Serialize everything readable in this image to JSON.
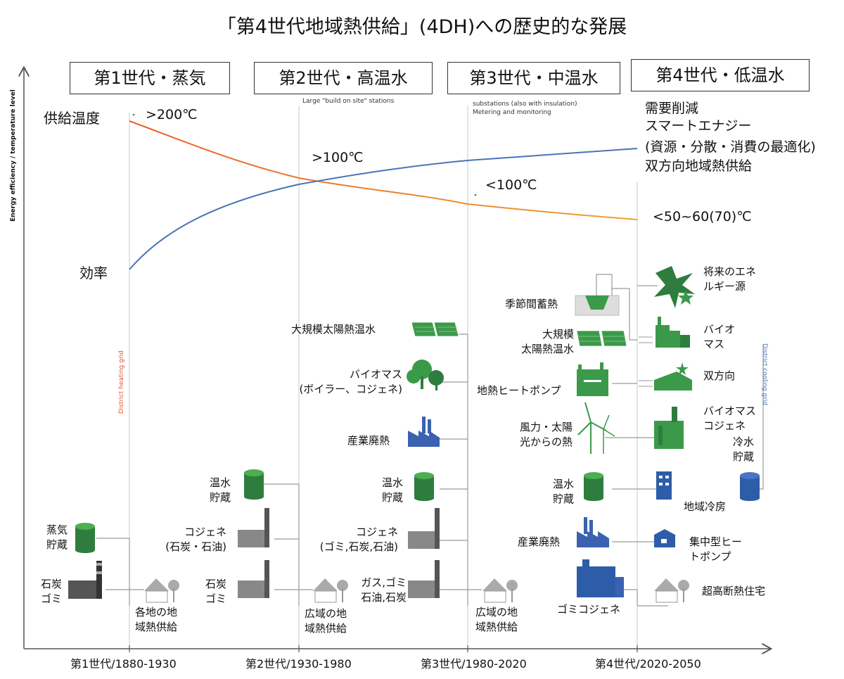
{
  "title": "「第4世代地域熱供給」(4DH)への歴史的な発展",
  "generations": [
    {
      "box": "第1世代・蒸気",
      "axis": "第1世代/1880-1930"
    },
    {
      "box": "第2世代・高温水",
      "axis": "第2世代/1930-1980"
    },
    {
      "box": "第3世代・中温水",
      "axis": "第3世代/1980-2020"
    },
    {
      "box": "第4世代・低温水",
      "axis": "第4世代/2020-2050"
    }
  ],
  "y_axis_label": "Energy efficiency / temperature level",
  "grid_labels": {
    "heating": "District heating grid",
    "cooling": "District cooling grid"
  },
  "notes": {
    "gen2": "Large \"build on site\" stations",
    "gen3_line1": "substations (also with insulation)",
    "gen3_line2": "Metering and monitoring"
  },
  "curves": {
    "supply_temp_label": "供給温度",
    "efficiency_label": "効率",
    "temps": [
      ">200℃",
      ">100℃",
      "<100℃",
      "<50~60(70)℃"
    ],
    "colors": {
      "temperature": "#E8742A",
      "efficiency": "#4A74B8"
    }
  },
  "gen4_features": [
    "需要削減",
    "スマートエナジー",
    "(資源・分散・消費の最適化)",
    "双方向地域熱供給"
  ],
  "gen1": {
    "steam_storage": [
      "蒸気",
      "貯蔵"
    ],
    "coal_waste": [
      "石炭",
      "ゴミ"
    ],
    "output": [
      "各地の地",
      "域熱供給"
    ]
  },
  "gen2": {
    "hot_water_storage": [
      "温水",
      "貯蔵"
    ],
    "chp": [
      "コジェネ",
      "(石炭・石油)"
    ],
    "coal_waste": [
      "石炭",
      "ゴミ"
    ],
    "output": [
      "広域の地",
      "域熱供給"
    ]
  },
  "gen3": {
    "solar": "大規模太陽熱温水",
    "biomass": [
      "バイオマス",
      "(ボイラー、コジェネ)"
    ],
    "industrial": "産業廃熱",
    "hot_water_storage": [
      "温水",
      "貯蔵"
    ],
    "chp": [
      "コジェネ",
      "(ゴミ,石炭,石油)"
    ],
    "fuels": [
      "ガス,ゴミ",
      "石油,石炭"
    ],
    "output": [
      "広域の地",
      "域熱供給"
    ]
  },
  "gen4_left": {
    "seasonal": "季節間蓄熱",
    "solar": [
      "大規模",
      "太陽熱温水"
    ],
    "geothermal": "地熱ヒートポンプ",
    "wind_solar": [
      "風力・太陽",
      "光からの熱"
    ],
    "hot_water_storage": [
      "温水",
      "貯蔵"
    ],
    "industrial": "産業廃熱",
    "waste_chp": "ゴミコジェネ"
  },
  "gen4_right": {
    "future": [
      "将来のエネ",
      "ルギー源"
    ],
    "biomass": [
      "バイオ",
      "マス"
    ],
    "bidirectional": "双方向",
    "biomass_chp": [
      "バイオマス",
      "コジェネ"
    ],
    "cold_storage": [
      "冷水",
      "貯蔵"
    ],
    "district_cooling": "地域冷房",
    "central_hp": [
      "集中型ヒー",
      "トポンプ"
    ],
    "insulated_house": "超高断熱住宅"
  }
}
